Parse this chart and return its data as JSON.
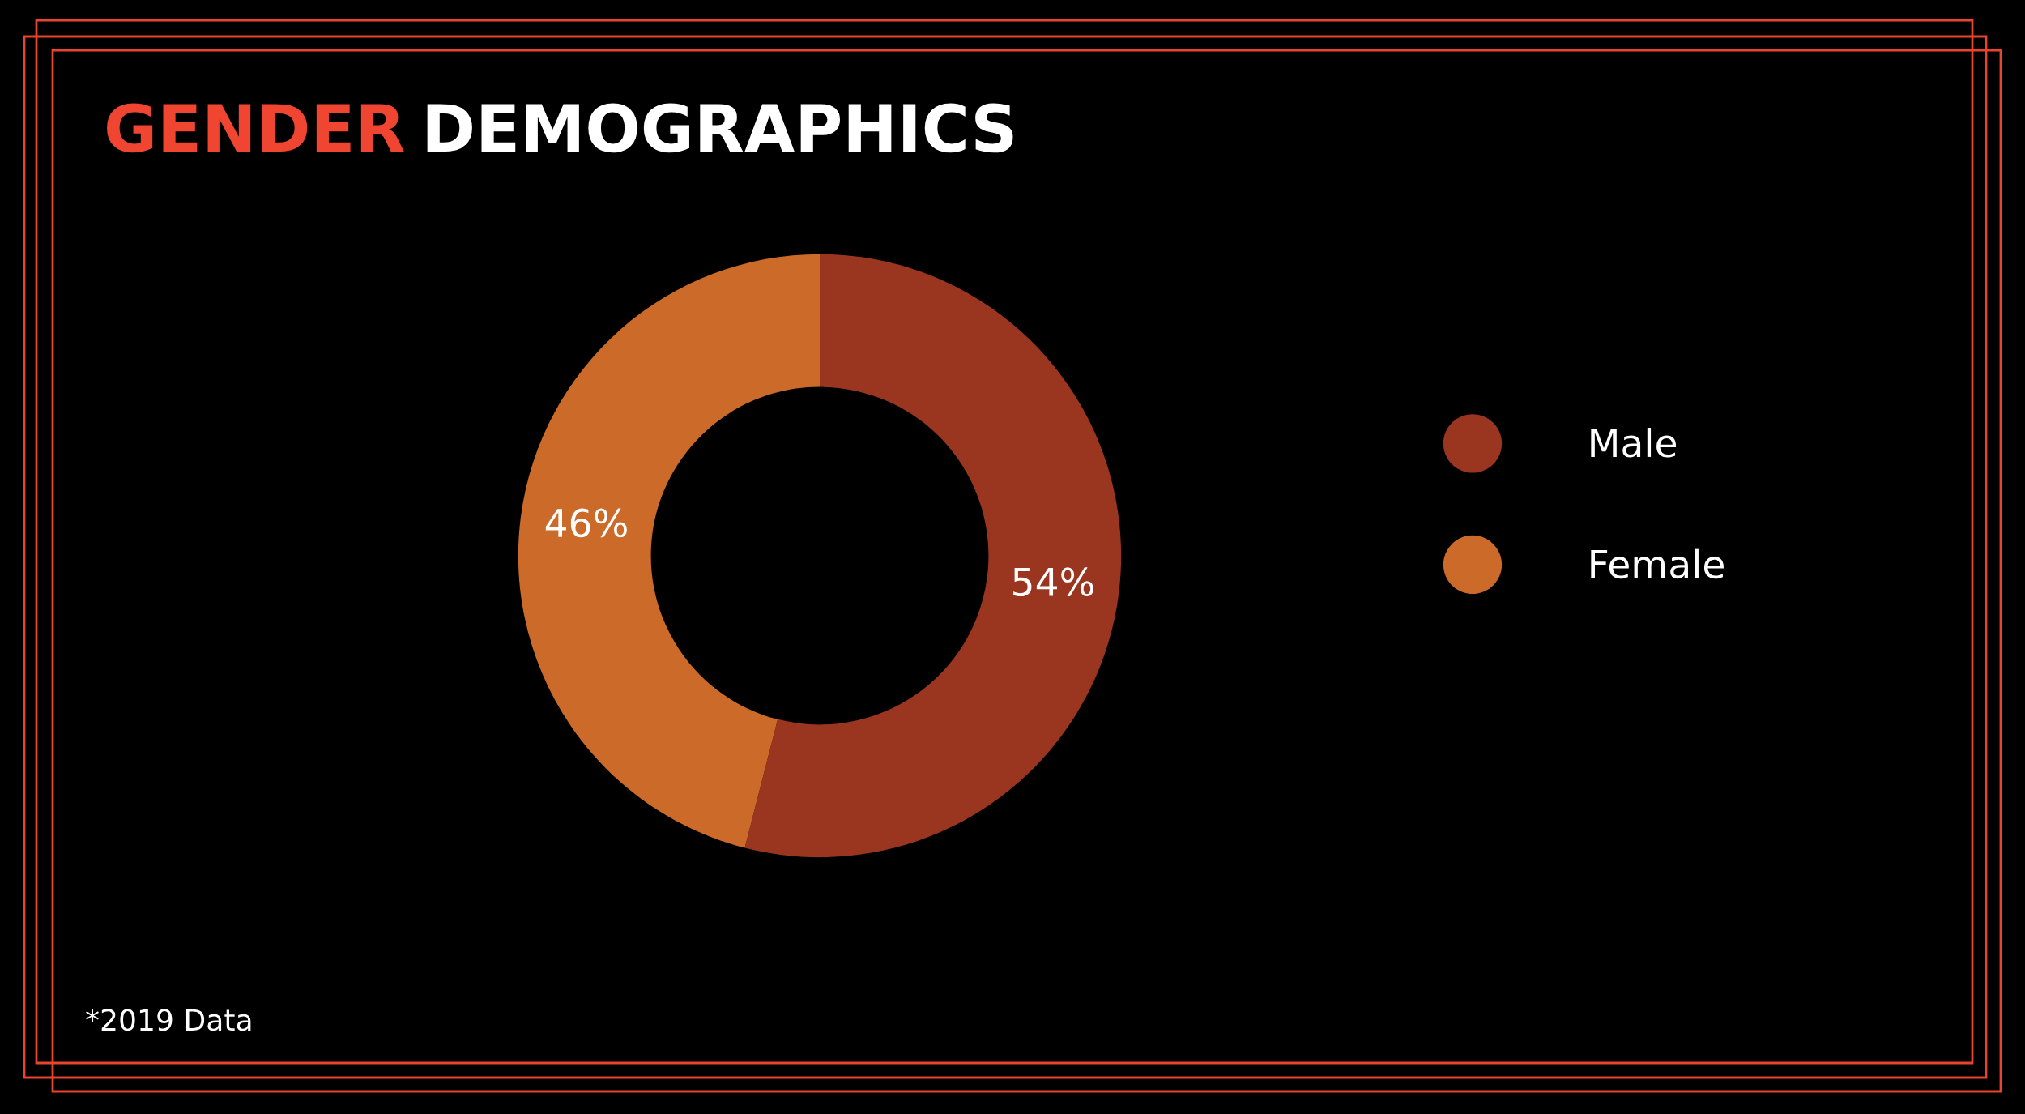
{
  "chart_data": {
    "type": "donut",
    "title": "GENDER DEMOGRAPHICS",
    "categories": [
      "Male",
      "Female"
    ],
    "values": [
      54,
      46
    ],
    "colors": [
      "#9a3520",
      "#cc6a2a"
    ],
    "value_labels": [
      "54%",
      "46%"
    ],
    "legend": "right",
    "annotations": [
      "*2019 Data"
    ]
  }
}
